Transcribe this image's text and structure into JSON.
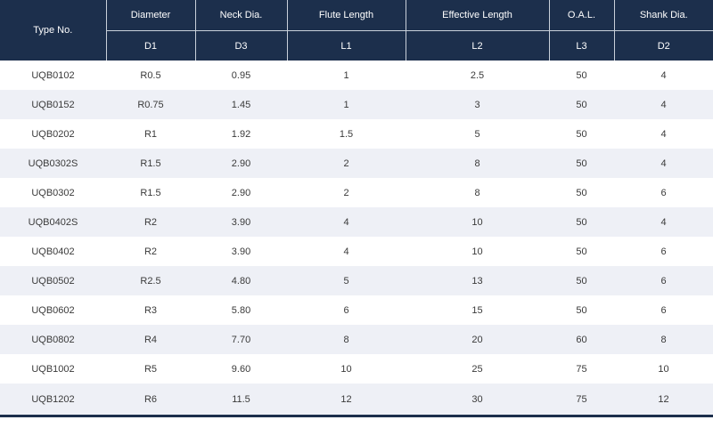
{
  "table": {
    "headers": {
      "type_no": "Type No.",
      "columns": [
        {
          "name": "Diameter",
          "symbol": "D1"
        },
        {
          "name": "Neck Dia.",
          "symbol": "D3"
        },
        {
          "name": "Flute Length",
          "symbol": "L1"
        },
        {
          "name": "Effective Length",
          "symbol": "L2"
        },
        {
          "name": "O.A.L.",
          "symbol": "L3"
        },
        {
          "name": "Shank Dia.",
          "symbol": "D2"
        }
      ]
    },
    "rows": [
      [
        "UQB0102",
        "R0.5",
        "0.95",
        "1",
        "2.5",
        "50",
        "4"
      ],
      [
        "UQB0152",
        "R0.75",
        "1.45",
        "1",
        "3",
        "50",
        "4"
      ],
      [
        "UQB0202",
        "R1",
        "1.92",
        "1.5",
        "5",
        "50",
        "4"
      ],
      [
        "UQB0302S",
        "R1.5",
        "2.90",
        "2",
        "8",
        "50",
        "4"
      ],
      [
        "UQB0302",
        "R1.5",
        "2.90",
        "2",
        "8",
        "50",
        "6"
      ],
      [
        "UQB0402S",
        "R2",
        "3.90",
        "4",
        "10",
        "50",
        "4"
      ],
      [
        "UQB0402",
        "R2",
        "3.90",
        "4",
        "10",
        "50",
        "6"
      ],
      [
        "UQB0502",
        "R2.5",
        "4.80",
        "5",
        "13",
        "50",
        "6"
      ],
      [
        "UQB0602",
        "R3",
        "5.80",
        "6",
        "15",
        "50",
        "6"
      ],
      [
        "UQB0802",
        "R4",
        "7.70",
        "8",
        "20",
        "60",
        "8"
      ],
      [
        "UQB1002",
        "R5",
        "9.60",
        "10",
        "25",
        "75",
        "10"
      ],
      [
        "UQB1202",
        "R6",
        "11.5",
        "12",
        "30",
        "75",
        "12"
      ]
    ]
  },
  "colors": {
    "header_bg": "#1c2f4c",
    "header_text": "#ffffff",
    "stripe": "#eef0f6",
    "cell_text": "#3a3a3a"
  }
}
